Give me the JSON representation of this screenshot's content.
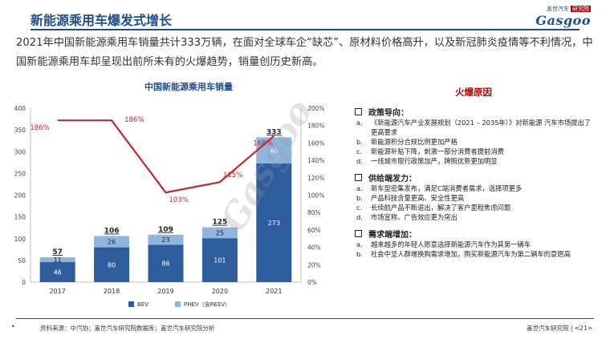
{
  "header": {
    "title": "新能源乘用车爆发式增长",
    "logo_small": "盖世汽车",
    "logo_badge": "研究院",
    "logo_main": "Gasgoo"
  },
  "intro": "2021年中国新能源乘用车销量共计333万辆，在面对全球车企“缺芯”、原材料价格高升，以及新冠肺炎疫情等不利情况，中国新能源乘用车却呈现出前所未有的火爆趋势，销量创历史新高。",
  "colors": {
    "bev": "#2e5d9e",
    "phev": "#8fb4de",
    "line": "#c0282d",
    "accent": "#1f4e8c"
  },
  "chart_data": {
    "type": "bar",
    "title": "中国新能源乘用车销量",
    "categories": [
      "2017",
      "2018",
      "2019",
      "2020",
      "2021"
    ],
    "series": [
      {
        "name": "BEV",
        "values": [
          46,
          80,
          86,
          101,
          273
        ]
      },
      {
        "name": "PHEV（含REEV）",
        "values": [
          11,
          26,
          23,
          25,
          60
        ]
      }
    ],
    "totals": [
      57,
      106,
      109,
      125,
      333
    ],
    "growth": {
      "values": [
        186,
        186,
        103,
        115,
        168
      ],
      "labels": [
        "186%",
        "186%",
        "103%",
        "115%",
        "168%"
      ]
    },
    "ylim": [
      0,
      400
    ],
    "yticks": [
      "0",
      "50",
      "100",
      "150",
      "200",
      "250",
      "300",
      "350",
      "400"
    ],
    "y2lim": [
      0,
      200
    ],
    "y2ticks": [
      "0%",
      "20%",
      "40%",
      "60%",
      "80%",
      "100%",
      "120%",
      "140%",
      "160%",
      "180%",
      "200%"
    ],
    "stacked": true,
    "legend_position": "bottom",
    "grid": false
  },
  "reasons": {
    "title": "火爆原因",
    "sections": [
      {
        "heading": "政策导向：",
        "items": [
          {
            "marker": "a.",
            "text": "《新能源汽车产业发展规划（2021 – 2035年）》对新能源 汽车市场提出了更高要求"
          },
          {
            "marker": "b.",
            "text": "新能源积分合规比例更加严格"
          },
          {
            "marker": "c.",
            "text": "新能源补贴下降，刺激一部分消费者提前消费"
          },
          {
            "marker": "d.",
            "text": "一线城市限行政策加严，牌照优势更加明显"
          }
        ]
      },
      {
        "heading": "供给端发力：",
        "items": [
          {
            "marker": "a.",
            "text": "新车型密集发布，满足C端消费者需求，选择项更多"
          },
          {
            "marker": "b.",
            "text": "产品科技含量更高、安全性更高"
          },
          {
            "marker": "c.",
            "text": "长续航产品不断退出，解决了客户里程焦虑问题"
          },
          {
            "marker": "d.",
            "text": "市场宣称、广告效应更为突出"
          }
        ]
      },
      {
        "heading": "需求端增加：",
        "items": [
          {
            "marker": "a.",
            "text": "越来越多的年轻人愿意选择新能源汽车作为其第一辆车"
          },
          {
            "marker": "b.",
            "text": "社会中坚人群增换购需求增加，购买新能源汽车为第二辆车的意愿高"
          }
        ]
      }
    ]
  },
  "footer": {
    "bullet": "•",
    "source": "资料来源：中汽协；盖世汽车研究院数据库；盖世汽车研究院分析",
    "page": "盖世汽车研究院 | <21>"
  }
}
